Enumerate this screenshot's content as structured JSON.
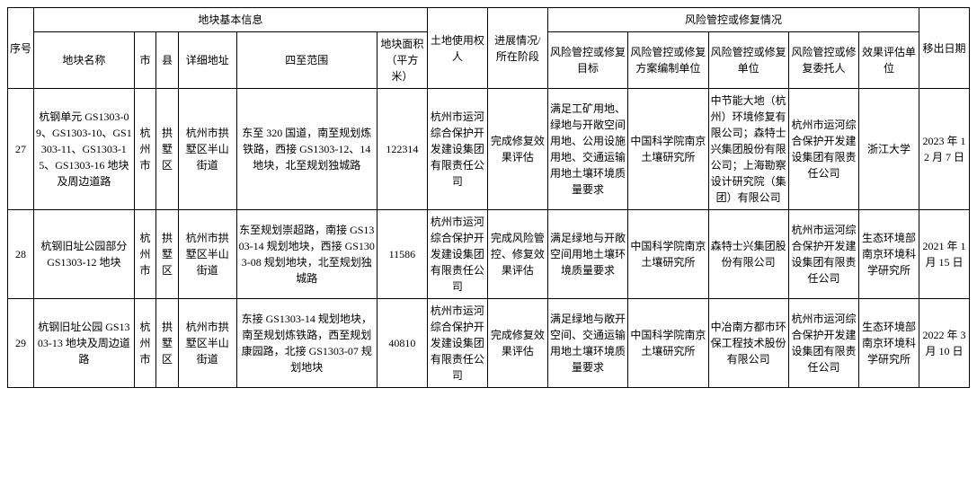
{
  "table": {
    "group_headers": {
      "basic": "地块基本信息",
      "risk": "风险管控或修复情况"
    },
    "columns": {
      "seq": "序号",
      "name": "地块名称",
      "city": "市",
      "county": "县",
      "addr": "详细地址",
      "bound": "四至范围",
      "area": "地块面积（平方米）",
      "owner": "土地使用权人",
      "stage": "进展情况/所在阶段",
      "target": "风险管控或修复目标",
      "plan_unit": "风险管控或修复方案编制单位",
      "remed_unit": "风险管控或修复单位",
      "trustee": "风险管控或修复委托人",
      "eval_unit": "效果评估单位",
      "remove_date": "移出日期"
    },
    "rows": [
      {
        "seq": "27",
        "name": "杭钢单元 GS1303-09、GS1303-10、GS1303-11、GS1303-15、GS1303-16 地块及周边道路",
        "city": "杭州市",
        "county": "拱墅区",
        "addr": "杭州市拱墅区半山街道",
        "bound": "东至 320 国道，南至规划炼铁路，西接 GS1303-12、14 地块，北至规划独城路",
        "area": "122314",
        "owner": "杭州市运河综合保护开发建设集团有限责任公司",
        "stage": "完成修复效果评估",
        "target": "满足工矿用地、绿地与开敞空间用地、公用设施用地、交通运输用地土壤环境质量要求",
        "plan_unit": "中国科学院南京土壤研究所",
        "remed_unit": "中节能大地（杭州）环境修复有限公司；森特士兴集团股份有限公司；上海勘察设计研究院（集团）有限公司",
        "trustee": "杭州市运河综合保护开发建设集团有限责任公司",
        "eval_unit": "浙江大学",
        "remove_date": "2023 年 12 月 7 日"
      },
      {
        "seq": "28",
        "name": "杭钢旧址公园部分 GS1303-12 地块",
        "city": "杭州市",
        "county": "拱墅区",
        "addr": "杭州市拱墅区半山街道",
        "bound": "东至规划崇超路，南接 GS1303-14 规划地块，西接 GS1303-08 规划地块，北至规划独城路",
        "area": "11586",
        "owner": "杭州市运河综合保护开发建设集团有限责任公司",
        "stage": "完成风险管控、修复效果评估",
        "target": "满足绿地与开敞空间用地土壤环境质量要求",
        "plan_unit": "中国科学院南京土壤研究所",
        "remed_unit": "森特士兴集团股份有限公司",
        "trustee": "杭州市运河综合保护开发建设集团有限责任公司",
        "eval_unit": "生态环境部南京环境科学研究所",
        "remove_date": "2021 年 1 月 15 日"
      },
      {
        "seq": "29",
        "name": "杭钢旧址公园 GS1303-13 地块及周边道路",
        "city": "杭州市",
        "county": "拱墅区",
        "addr": "杭州市拱墅区半山街道",
        "bound": "东接 GS1303-14 规划地块，南至规划炼铁路，西至规划康园路，北接 GS1303-07 规划地块",
        "area": "40810",
        "owner": "杭州市运河综合保护开发建设集团有限责任公司",
        "stage": "完成修复效果评估",
        "target": "满足绿地与敞开空间、交通运输用地土壤环境质量要求",
        "plan_unit": "中国科学院南京土壤研究所",
        "remed_unit": "中冶南方都市环保工程技术股份有限公司",
        "trustee": "杭州市运河综合保护开发建设集团有限责任公司",
        "eval_unit": "生态环境部南京环境科学研究所",
        "remove_date": "2022 年 3 月 10 日"
      }
    ]
  }
}
